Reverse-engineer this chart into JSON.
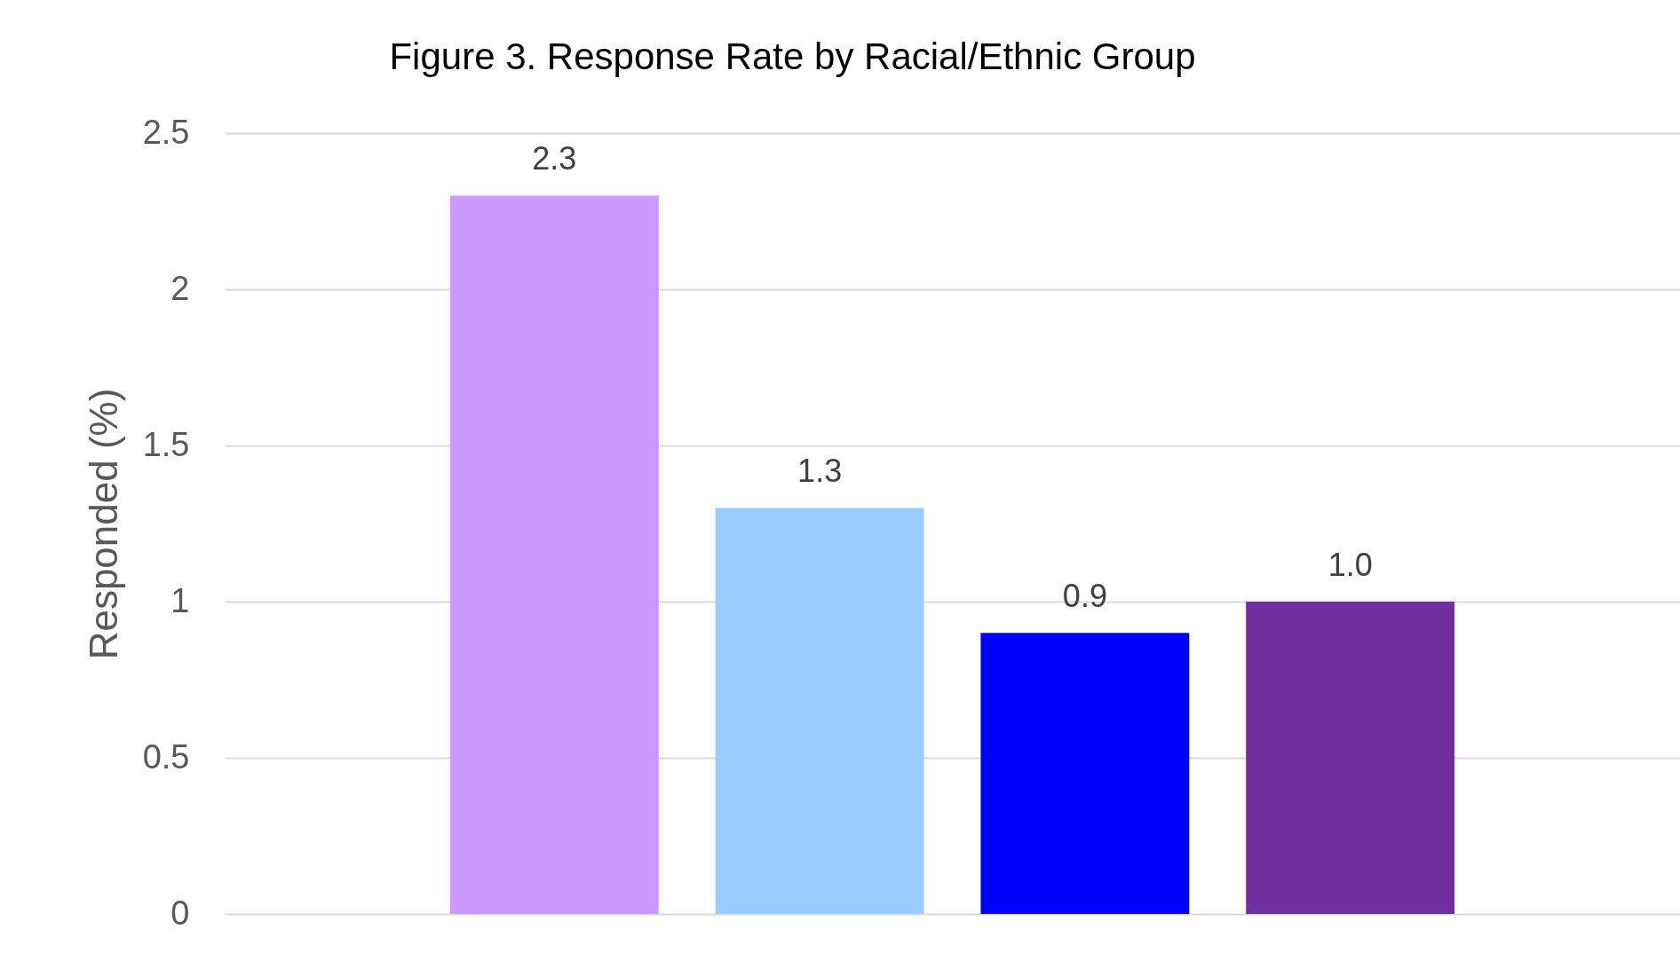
{
  "chart_data": {
    "type": "bar",
    "title": "Figure 3. Response Rate by Racial/Ethnic Group",
    "ylabel": "Responded (%)",
    "categories": [
      null,
      null,
      null,
      null
    ],
    "values": [
      2.3,
      1.3,
      0.9,
      1.0
    ],
    "value_labels": [
      "2.3",
      "1.3",
      "0.9",
      "1.0"
    ],
    "colors": [
      "#cc99ff",
      "#99ccff",
      "#0000ff",
      "#7030a0"
    ],
    "ylim": [
      0,
      2.5
    ],
    "yticks": [
      0,
      0.5,
      1,
      1.5,
      2,
      2.5
    ],
    "grid": "y",
    "tick_labels": "y"
  }
}
